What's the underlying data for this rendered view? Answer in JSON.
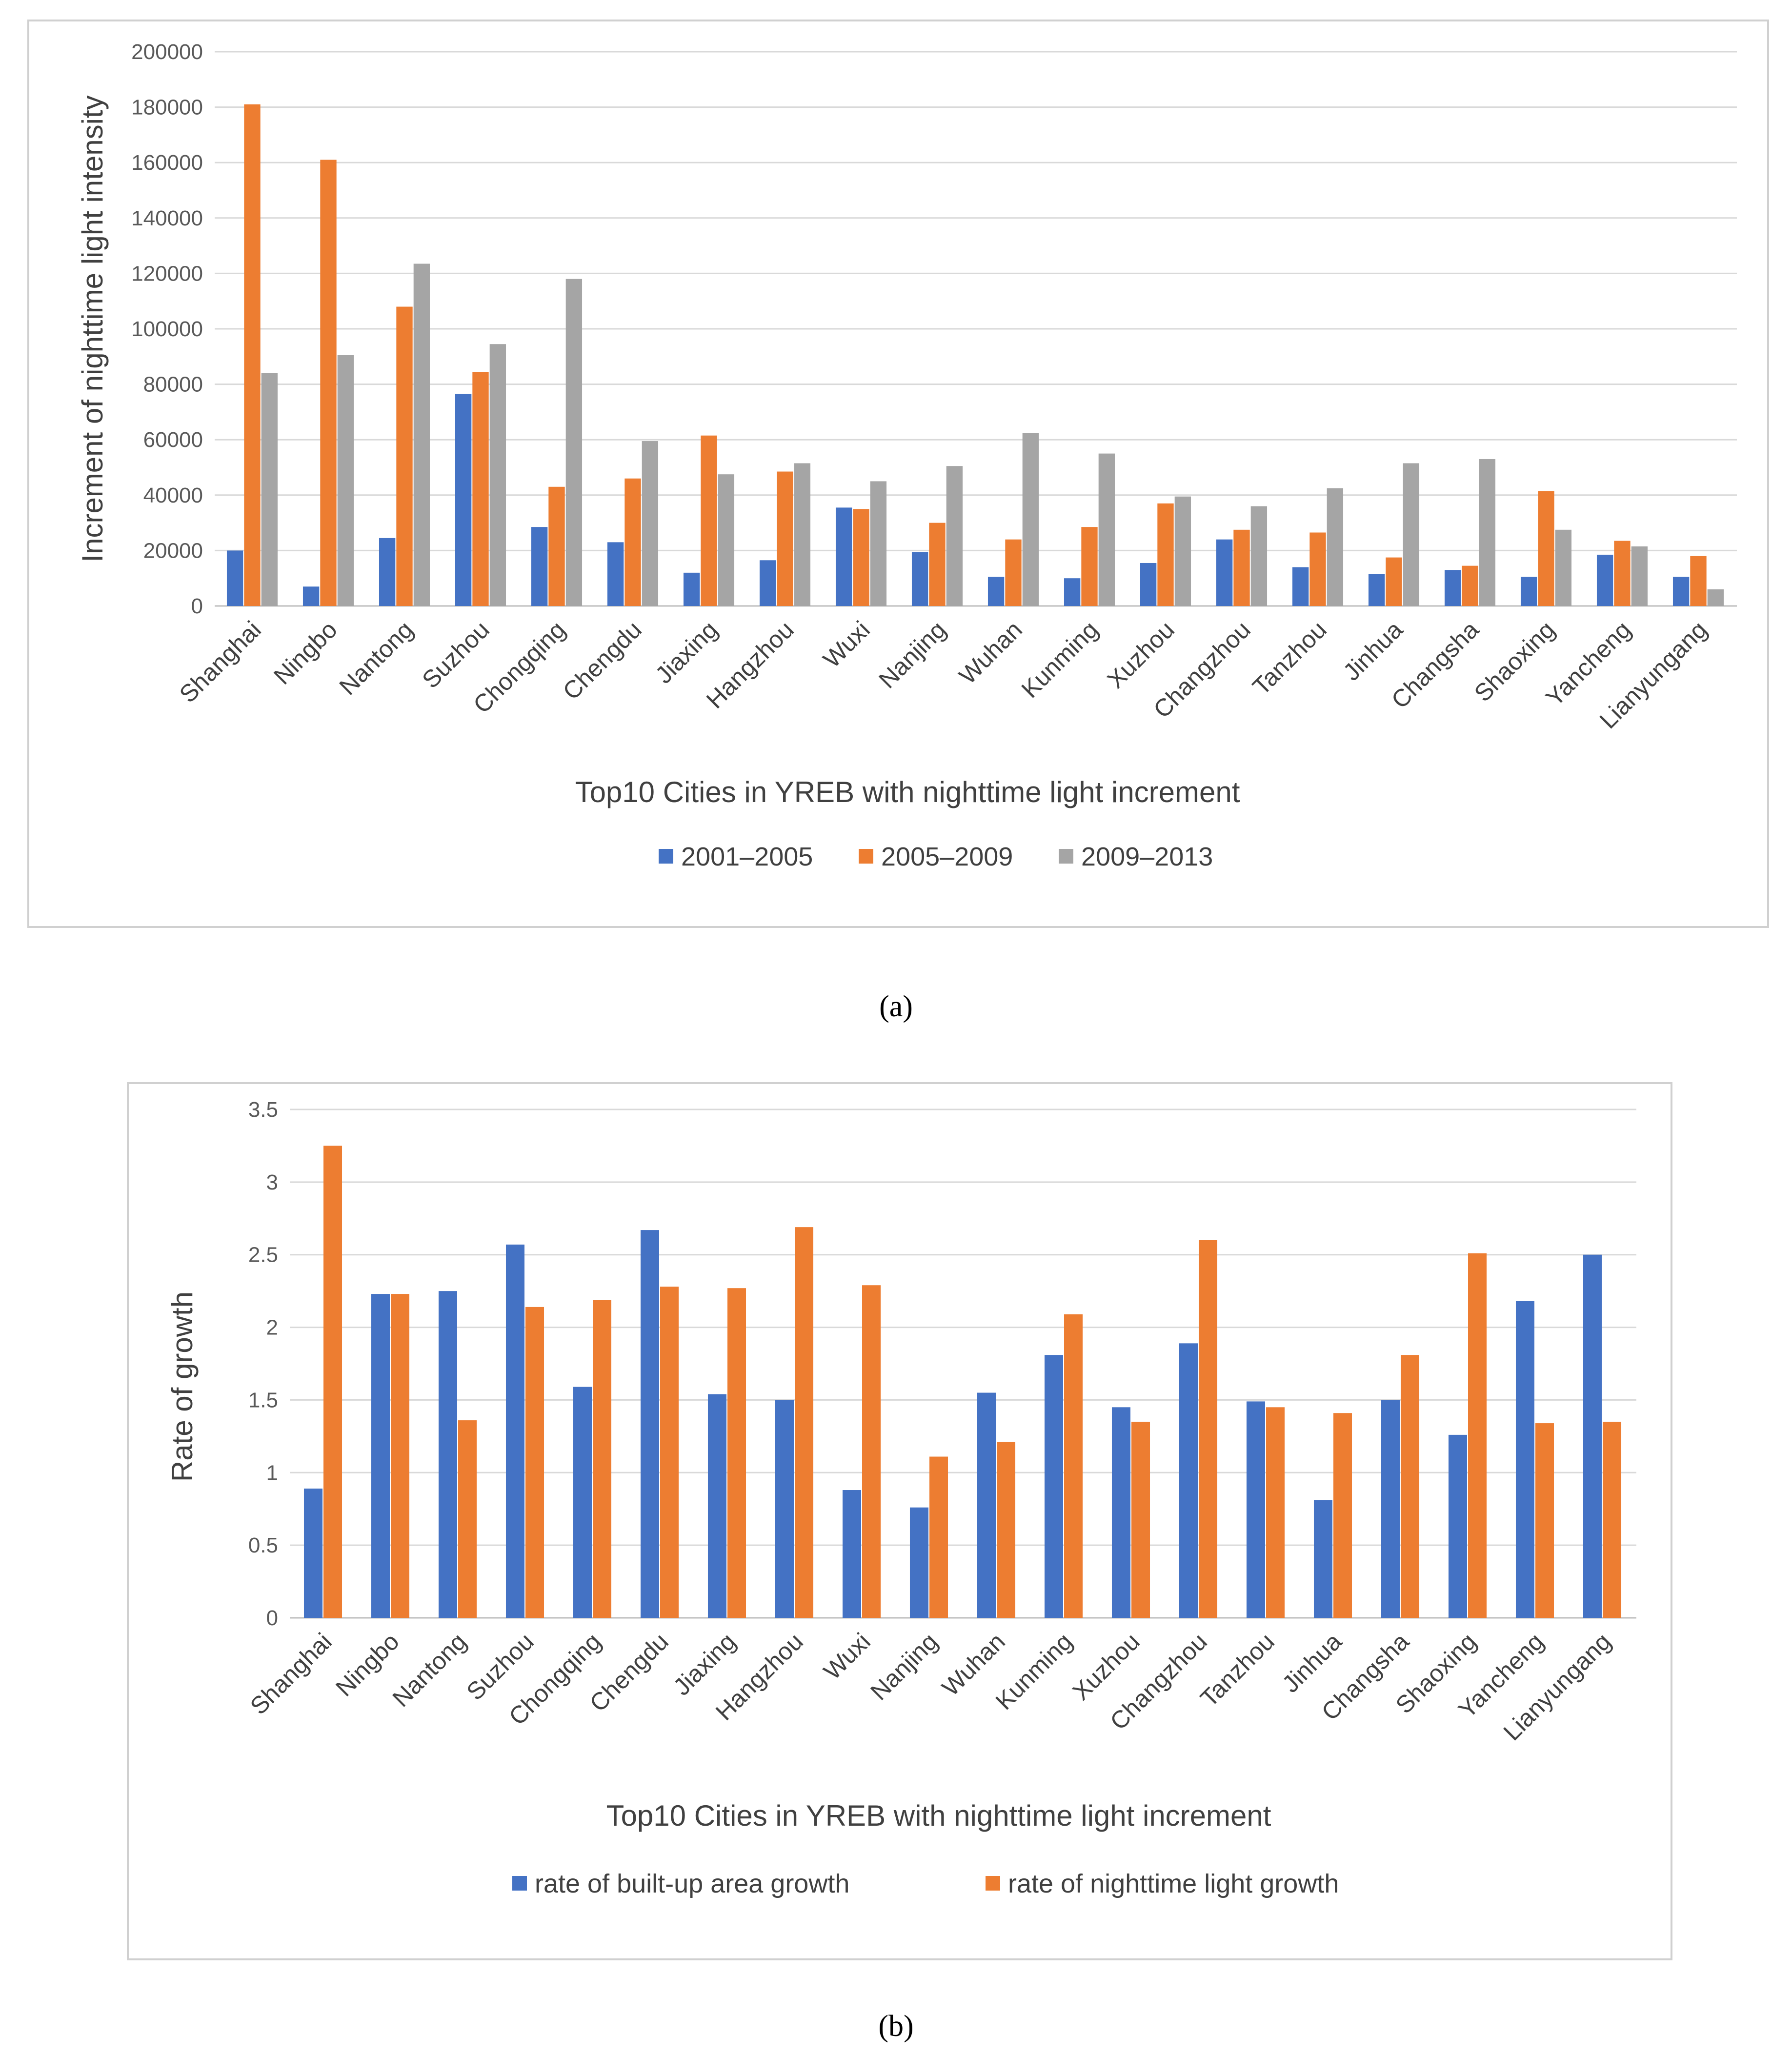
{
  "chart_data": [
    {
      "type": "bar",
      "title": "",
      "xlabel": "Top10 Cities in YREB with nighttime light increment",
      "ylabel": "Increment of nighttime light intensity",
      "ylim": [
        0,
        200000
      ],
      "yticks": [
        0,
        20000,
        40000,
        60000,
        80000,
        100000,
        120000,
        140000,
        160000,
        180000,
        200000
      ],
      "grid": true,
      "legend_position": "bottom",
      "categories": [
        "Shanghai",
        "Ningbo",
        "Nantong",
        "Suzhou",
        "Chongqing",
        "Chengdu",
        "Jiaxing",
        "Hangzhou",
        "Wuxi",
        "Nanjing",
        "Wuhan",
        "Kunming",
        "Xuzhou",
        "Changzhou",
        "Tanzhou",
        "Jinhua",
        "Changsha",
        "Shaoxing",
        "Yancheng",
        "Lianyungang"
      ],
      "series": [
        {
          "name": "2001–2005",
          "color": "#4472c4",
          "values": [
            20000,
            7000,
            24500,
            76500,
            28500,
            23000,
            12000,
            16500,
            35500,
            19500,
            10500,
            10000,
            15500,
            24000,
            14000,
            11500,
            13000,
            10500,
            18500,
            10500
          ]
        },
        {
          "name": "2005–2009",
          "color": "#ed7d31",
          "values": [
            181000,
            161000,
            108000,
            84500,
            43000,
            46000,
            61500,
            48500,
            35000,
            30000,
            24000,
            28500,
            37000,
            27500,
            26500,
            17500,
            14500,
            41500,
            23500,
            18000
          ]
        },
        {
          "name": "2009–2013",
          "color": "#a5a5a5",
          "values": [
            84000,
            90500,
            123500,
            94500,
            118000,
            59500,
            47500,
            51500,
            45000,
            50500,
            62500,
            55000,
            39500,
            36000,
            42500,
            51500,
            53000,
            27500,
            21500,
            6000
          ]
        }
      ]
    },
    {
      "type": "bar",
      "title": "",
      "xlabel": "Top10 Cities in YREB with nighttime light increment",
      "ylabel": "Rate of growth",
      "ylim": [
        0,
        3.5
      ],
      "yticks": [
        0,
        0.5,
        1,
        1.5,
        2,
        2.5,
        3,
        3.5
      ],
      "grid": true,
      "legend_position": "bottom",
      "categories": [
        "Shanghai",
        "Ningbo",
        "Nantong",
        "Suzhou",
        "Chongqing",
        "Chengdu",
        "Jiaxing",
        "Hangzhou",
        "Wuxi",
        "Nanjing",
        "Wuhan",
        "Kunming",
        "Xuzhou",
        "Changzhou",
        "Tanzhou",
        "Jinhua",
        "Changsha",
        "Shaoxing",
        "Yancheng",
        "Lianyungang"
      ],
      "series": [
        {
          "name": "rate of built-up area growth",
          "color": "#4472c4",
          "values": [
            0.89,
            2.23,
            2.25,
            2.57,
            1.59,
            2.67,
            1.54,
            1.5,
            0.88,
            0.76,
            1.55,
            1.81,
            1.45,
            1.89,
            1.49,
            0.81,
            1.5,
            1.26,
            2.18,
            2.5
          ]
        },
        {
          "name": "rate of nighttime light growth",
          "color": "#ed7d31",
          "values": [
            3.25,
            2.23,
            1.36,
            2.14,
            2.19,
            2.28,
            2.27,
            2.69,
            2.29,
            1.11,
            1.21,
            2.09,
            1.35,
            2.6,
            1.45,
            1.41,
            1.81,
            2.51,
            1.34,
            1.35
          ]
        }
      ]
    }
  ],
  "captions": {
    "a": "(a)",
    "b": "(b)"
  }
}
